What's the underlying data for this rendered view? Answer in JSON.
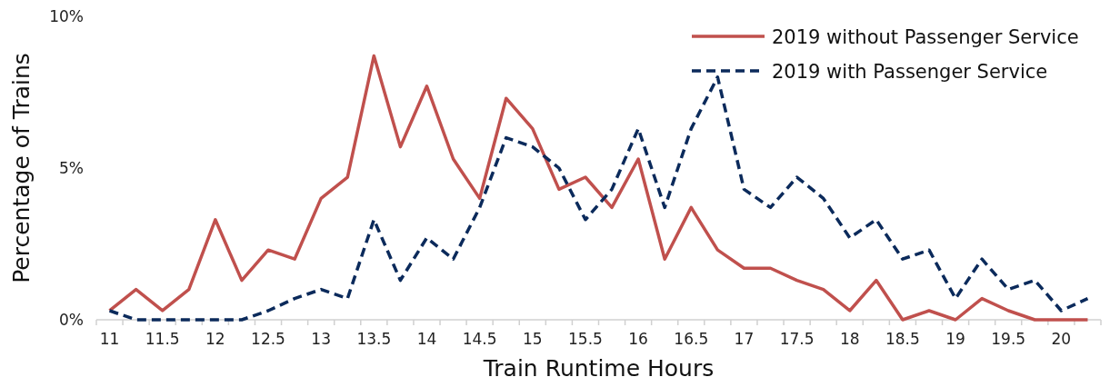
{
  "chart_data": {
    "type": "line",
    "xlabel": "Train Runtime Hours",
    "ylabel": "Percentage of Trains",
    "categories": [
      "11",
      null,
      "11.5",
      null,
      "12",
      null,
      "12.5",
      null,
      "13",
      null,
      "13.5",
      null,
      "14",
      null,
      "14.5",
      null,
      "15",
      null,
      "15.5",
      null,
      "16",
      null,
      "16.5",
      null,
      "17",
      null,
      "17.5",
      null,
      "18",
      null,
      "18.5",
      null,
      "19",
      null,
      "19.5",
      null,
      "20",
      null
    ],
    "series": [
      {
        "name": "2019 without Passenger Service",
        "color": "#c0504d",
        "line_style": "solid",
        "values": [
          0.3,
          1.0,
          0.3,
          1.0,
          3.3,
          1.3,
          2.3,
          2.0,
          4.0,
          4.7,
          8.7,
          5.7,
          7.7,
          5.3,
          4.0,
          7.3,
          6.3,
          4.3,
          4.7,
          3.7,
          5.3,
          2.0,
          3.7,
          2.3,
          1.7,
          1.7,
          1.3,
          1.0,
          0.3,
          1.3,
          0,
          0.3,
          0,
          0.7,
          0.3,
          0,
          0,
          0
        ]
      },
      {
        "name": "2019 with Passenger Service",
        "color": "#0b2a5b",
        "line_style": "dashed",
        "values": [
          0.3,
          0,
          0,
          0,
          0,
          0,
          0.3,
          0.7,
          1.0,
          0.7,
          3.3,
          1.3,
          2.7,
          2.0,
          3.7,
          6.0,
          5.7,
          5.0,
          3.3,
          4.3,
          6.3,
          3.7,
          6.3,
          8.0,
          4.3,
          3.7,
          4.7,
          4.0,
          2.7,
          3.3,
          2.0,
          2.3,
          0.7,
          2.0,
          1.0,
          1.3,
          0.3,
          0.7
        ]
      }
    ],
    "ylim": [
      0,
      10
    ],
    "yticks": [
      {
        "value": 0,
        "label": "0%"
      },
      {
        "value": 5,
        "label": "5%"
      },
      {
        "value": 10,
        "label": "10%"
      }
    ],
    "grid": false,
    "legend": "top right",
    "marker": "none"
  }
}
